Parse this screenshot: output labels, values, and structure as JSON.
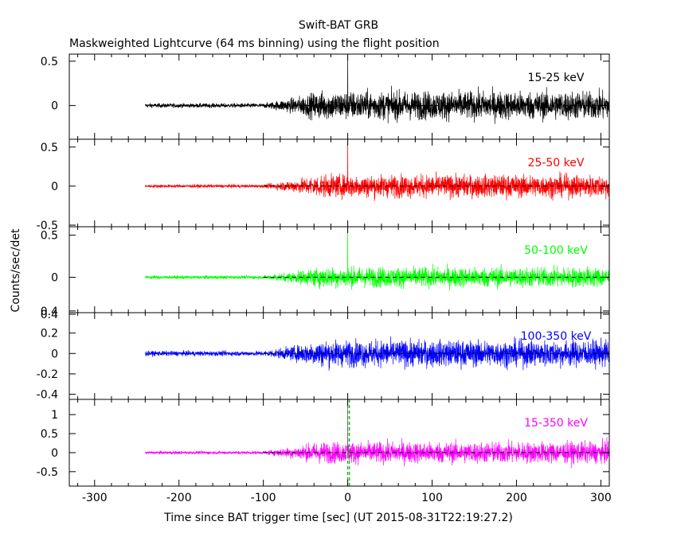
{
  "header": {
    "title": "Swift-BAT GRB",
    "subtitle": "Maskweighted Lightcurve (64 ms binning) using the flight position"
  },
  "axes": {
    "xlabel": "Time since BAT trigger time [sec] (UT 2015-08-31T22:19:27.2)",
    "ylabel": "Counts/sec/det",
    "xlim": [
      -330,
      310
    ],
    "xticks": [
      "-300",
      "-200",
      "-100",
      "0",
      "100",
      "200",
      "300"
    ]
  },
  "chart_data": {
    "type": "line",
    "title": "Swift-BAT GRB",
    "subtitle": "Maskweighted Lightcurve (64 ms binning) using the flight position",
    "xlabel": "Time since BAT trigger time [sec] (UT 2015-08-31T22:19:27.2)",
    "ylabel": "Counts/sec/det",
    "x_range": [
      -240,
      310
    ],
    "vertical_markers": [
      0,
      2
    ],
    "zero_reference_line": "dashed",
    "panels": [
      {
        "name": "15-25 keV",
        "color": "#000000",
        "ylim": [
          -0.38,
          0.58
        ],
        "yticks": [
          "0.5",
          "0"
        ],
        "quiet_noise": 0.03,
        "active_noise": 0.2,
        "active_start": -60,
        "spike": {
          "x": 0,
          "y": 0.58
        }
      },
      {
        "name": "25-50 keV",
        "color": "#ff0000",
        "ylim": [
          -0.52,
          0.6
        ],
        "yticks": [
          "0.5",
          "0",
          "-0.5"
        ],
        "quiet_noise": 0.025,
        "active_noise": 0.18,
        "active_start": -60,
        "spike": {
          "x": 0,
          "y": 0.6
        }
      },
      {
        "name": "50-100 keV",
        "color": "#00ff00",
        "ylim": [
          -0.42,
          0.6
        ],
        "yticks": [
          "0.5",
          "0",
          "0.4"
        ],
        "quiet_noise": 0.025,
        "active_noise": 0.15,
        "active_start": -60,
        "spike": {
          "x": 0,
          "y": 0.6
        }
      },
      {
        "name": "100-350 keV",
        "color": "#0000ff",
        "ylim": [
          -0.45,
          0.4
        ],
        "yticks": [
          "0.4",
          "0.2",
          "0",
          "-0.2",
          "-0.4"
        ],
        "quiet_noise": 0.03,
        "active_noise": 0.16,
        "active_start": -60,
        "spike": null
      },
      {
        "name": "15-350 keV",
        "color": "#ff00ff",
        "ylim": [
          -0.88,
          1.4
        ],
        "yticks": [
          "1",
          "0.5",
          "0",
          "-0.5"
        ],
        "quiet_noise": 0.05,
        "active_noise": 0.35,
        "active_start": -60,
        "spike": {
          "x": 0,
          "y": 1.4
        }
      }
    ]
  }
}
